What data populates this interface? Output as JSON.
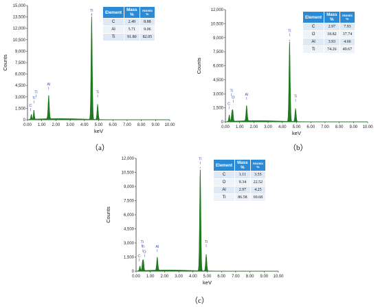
{
  "chart_data": [
    {
      "type": "line",
      "panel_label": "（a）",
      "xlabel": "keV",
      "ylabel": "Counts",
      "xlim": [
        0,
        10
      ],
      "ylim": [
        0,
        15000
      ],
      "x_ticks": [
        "0.00",
        "1.00",
        "2.00",
        "3.00",
        "4.00",
        "5.00",
        "6.00",
        "7.00",
        "8.00",
        "9.00",
        "10.00"
      ],
      "y_ticks": [
        "0",
        "1,500",
        "3,000",
        "4,500",
        "6,000",
        "7,500",
        "9,000",
        "10,500",
        "12,000",
        "13,500",
        "15,000"
      ],
      "color": "#1f7a1f",
      "series": [
        {
          "peaks": [
            {
              "x": 0.27,
              "y": 650
            },
            {
              "x": 0.45,
              "y": 1200
            },
            {
              "x": 1.49,
              "y": 3100
            },
            {
              "x": 4.51,
              "y": 13800
            },
            {
              "x": 4.93,
              "y": 2000
            }
          ]
        }
      ],
      "peak_labels": [
        {
          "text": "C",
          "x": 0.22,
          "y": 1700
        },
        {
          "text": "Ti",
          "x": 0.45,
          "y": 2700
        },
        {
          "text": "Ti",
          "x": 0.6,
          "y": 3500
        },
        {
          "text": "Al",
          "x": 1.49,
          "y": 4500
        },
        {
          "text": "Ti",
          "x": 4.51,
          "y": 14200
        },
        {
          "text": "Ti",
          "x": 4.93,
          "y": 3500
        }
      ],
      "table": {
        "headers": [
          "Element",
          "Mass %",
          "Atomic %"
        ],
        "rows": [
          [
            "C",
            "2.49",
            "8.88"
          ],
          [
            "Al",
            "5.71",
            "9.06"
          ],
          [
            "Ti",
            "91.80",
            "82.05"
          ]
        ]
      }
    },
    {
      "type": "line",
      "panel_label": "（b）",
      "xlabel": "keV",
      "ylabel": "Counts",
      "xlim": [
        0,
        10
      ],
      "ylim": [
        0,
        12000
      ],
      "x_ticks": [
        "0.00",
        "1.00",
        "2.00",
        "3.00",
        "4.00",
        "5.00",
        "6.00",
        "7.00",
        "8.00",
        "9.00",
        "10.00"
      ],
      "y_ticks": [
        "0",
        "1,500",
        "3,000",
        "4,500",
        "6,000",
        "7,500",
        "9,000",
        "10,500",
        "12,000"
      ],
      "color": "#1f7a1f",
      "series": [
        {
          "peaks": [
            {
              "x": 0.27,
              "y": 700
            },
            {
              "x": 0.45,
              "y": 900
            },
            {
              "x": 0.52,
              "y": 1100
            },
            {
              "x": 1.49,
              "y": 1650
            },
            {
              "x": 4.51,
              "y": 8700
            },
            {
              "x": 4.93,
              "y": 1400
            }
          ]
        }
      ],
      "peak_labels": [
        {
          "text": "C",
          "x": 0.25,
          "y": 1800
        },
        {
          "text": "Ti",
          "x": 0.42,
          "y": 3200
        },
        {
          "text": "O",
          "x": 0.55,
          "y": 2500
        },
        {
          "text": "Al",
          "x": 1.49,
          "y": 2800
        },
        {
          "text": "Ti",
          "x": 4.51,
          "y": 9600
        },
        {
          "text": "Ti",
          "x": 4.93,
          "y": 2600
        }
      ],
      "table": {
        "headers": [
          "Element",
          "Mass %",
          "Atomic %"
        ],
        "rows": [
          [
            "C",
            "2.97",
            "7.93"
          ],
          [
            "O",
            "18.82",
            "37.74"
          ],
          [
            "Al",
            "3.93",
            "4.66"
          ],
          [
            "Ti",
            "74.26",
            "49.67"
          ]
        ]
      }
    },
    {
      "type": "line",
      "panel_label": "（c）",
      "xlabel": "keV",
      "ylabel": "Counts",
      "xlim": [
        0,
        10
      ],
      "ylim": [
        0,
        12000
      ],
      "x_ticks": [
        "0.00",
        "1.00",
        "2.00",
        "3.00",
        "4.00",
        "5.00",
        "6.00",
        "7.00",
        "8.00",
        "9.00",
        "10.00"
      ],
      "y_ticks": [
        "0",
        "1,500",
        "3,000",
        "4,500",
        "6,000",
        "7,500",
        "9,000",
        "10,500",
        "12,000"
      ],
      "color": "#1f7a1f",
      "series": [
        {
          "peaks": [
            {
              "x": 0.27,
              "y": 500
            },
            {
              "x": 0.45,
              "y": 900
            },
            {
              "x": 0.52,
              "y": 1000
            },
            {
              "x": 1.49,
              "y": 1400
            },
            {
              "x": 4.51,
              "y": 11000
            },
            {
              "x": 4.93,
              "y": 1750
            }
          ]
        }
      ],
      "peak_labels": [
        {
          "text": "C",
          "x": 0.22,
          "y": 1500
        },
        {
          "text": "Ti",
          "x": 0.42,
          "y": 3000
        },
        {
          "text": "Ti",
          "x": 0.48,
          "y": 2500
        },
        {
          "text": "O",
          "x": 0.6,
          "y": 1950
        },
        {
          "text": "Al",
          "x": 1.49,
          "y": 2500
        },
        {
          "text": "Ti",
          "x": 4.51,
          "y": 11800
        },
        {
          "text": "Ti",
          "x": 4.93,
          "y": 3000
        }
      ],
      "table": {
        "headers": [
          "Element",
          "Mass %",
          "Atomic %"
        ],
        "rows": [
          [
            "C",
            "1.11",
            "3.55"
          ],
          [
            "O",
            "9.34",
            "22.52"
          ],
          [
            "Al",
            "2.97",
            "4.25"
          ],
          [
            "Ti",
            "86.58",
            "69.68"
          ]
        ]
      }
    }
  ]
}
